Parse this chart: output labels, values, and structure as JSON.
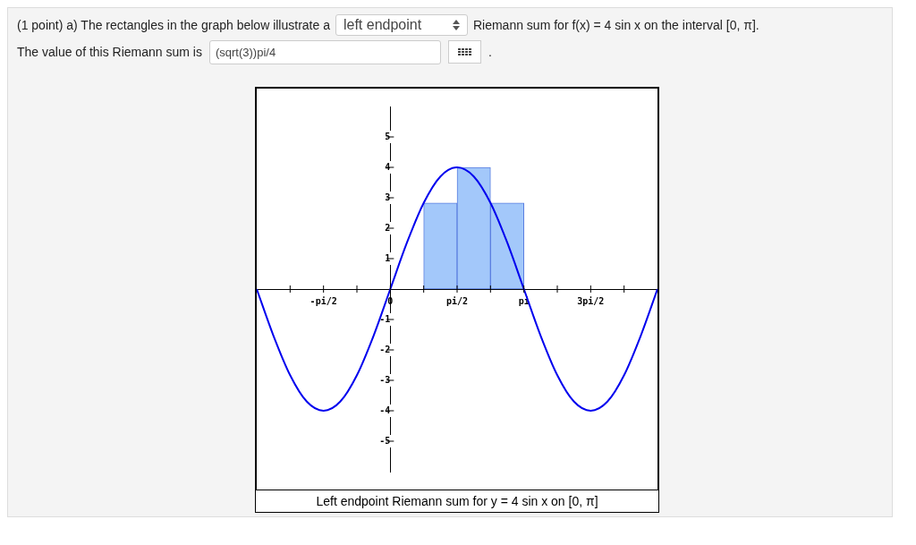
{
  "chart_data": {
    "type": "histogram",
    "title": "Left endpoint Riemann sum for y = 4 sin x on [0, π]",
    "annotations": [
      "(1 point) a) The rectangles in the graph below illustrate a",
      "left endpoint",
      "Riemann sum for f(x) = 4 sin x on the interval [0, π].",
      "The value of this Riemann sum is",
      "(sqrt(3))pi/4",
      "."
    ],
    "xlim": [
      -3.1416,
      6.2832
    ],
    "ylim": [
      -6,
      6
    ],
    "xticks": [
      {
        "value": -2.3562,
        "label": null
      },
      {
        "value": -1.5708,
        "label": "-pi/2"
      },
      {
        "value": -0.7854,
        "label": null
      },
      {
        "value": 0,
        "label": "0"
      },
      {
        "value": 0.7854,
        "label": null
      },
      {
        "value": 1.5708,
        "label": "pi/2"
      },
      {
        "value": 2.3562,
        "label": null
      },
      {
        "value": 3.1416,
        "label": "pi"
      },
      {
        "value": 3.927,
        "label": null
      },
      {
        "value": 4.7124,
        "label": "3pi/2"
      },
      {
        "value": 5.4978,
        "label": null
      }
    ],
    "yticks": [
      -5,
      -4,
      -3,
      -2,
      -1,
      1,
      2,
      3,
      4,
      5
    ],
    "series": [
      {
        "color": "#a3c8fa",
        "bins": [
          0,
          0.7854,
          1.5708,
          2.3562,
          3.1416
        ],
        "values": [
          0,
          2.83,
          4,
          2.83
        ]
      },
      {
        "type": "line",
        "color": "#0000ee",
        "x": [
          -3.1416,
          -2.7489,
          -2.3562,
          -1.9635,
          -1.5708,
          -1.1781,
          -0.7854,
          -0.3927,
          0,
          0.3927,
          0.7854,
          1.1781,
          1.5708,
          1.9635,
          2.3562,
          2.7489,
          3.1416,
          3.5343,
          3.927,
          4.3197,
          4.7124,
          5.1051,
          5.4978,
          5.8905,
          6.2832
        ],
        "values": [
          0,
          -1.53,
          -2.83,
          -3.7,
          -4,
          -3.7,
          -2.83,
          -1.53,
          0,
          1.53,
          2.83,
          3.7,
          4,
          3.7,
          2.83,
          1.53,
          0,
          -1.53,
          -2.83,
          -3.7,
          -4,
          -3.7,
          -2.83,
          -1.53,
          0
        ]
      }
    ]
  }
}
